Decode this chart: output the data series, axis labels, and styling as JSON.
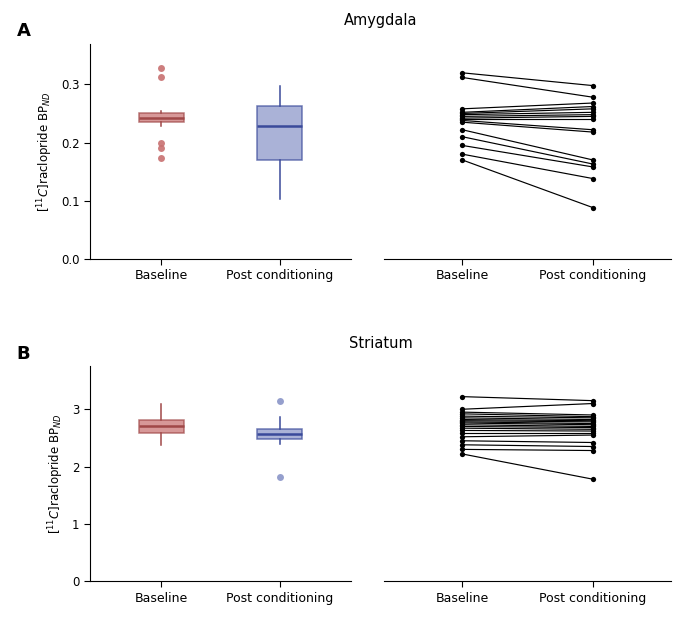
{
  "title_A": "Amygdala",
  "title_B": "Striatum",
  "xlabel": [
    "Baseline",
    "Post conditioning"
  ],
  "panel_A_box": {
    "baseline": {
      "median": 0.243,
      "q1": 0.235,
      "q3": 0.25,
      "whisker_low": 0.228,
      "whisker_high": 0.255,
      "outliers": [
        0.328,
        0.312,
        0.2,
        0.19,
        0.174
      ]
    },
    "post": {
      "median": 0.228,
      "q1": 0.17,
      "q3": 0.263,
      "whisker_low": 0.102,
      "whisker_high": 0.298,
      "outliers": []
    }
  },
  "panel_A_lines": {
    "baseline": [
      0.32,
      0.312,
      0.258,
      0.252,
      0.25,
      0.248,
      0.245,
      0.242,
      0.24,
      0.238,
      0.235,
      0.222,
      0.21,
      0.195,
      0.18,
      0.17
    ],
    "post": [
      0.298,
      0.278,
      0.268,
      0.262,
      0.258,
      0.252,
      0.248,
      0.245,
      0.24,
      0.222,
      0.218,
      0.17,
      0.163,
      0.158,
      0.138,
      0.088
    ]
  },
  "panel_B_box": {
    "baseline": {
      "median": 2.7,
      "q1": 2.58,
      "q3": 2.82,
      "whisker_low": 2.38,
      "whisker_high": 3.1,
      "outliers": []
    },
    "post": {
      "median": 2.57,
      "q1": 2.48,
      "q3": 2.65,
      "whisker_low": 2.4,
      "whisker_high": 2.87,
      "outliers": [
        3.15,
        1.82
      ]
    }
  },
  "panel_B_lines": {
    "baseline": [
      3.22,
      3.0,
      2.95,
      2.92,
      2.88,
      2.85,
      2.82,
      2.8,
      2.78,
      2.76,
      2.73,
      2.7,
      2.67,
      2.63,
      2.58,
      2.52,
      2.45,
      2.38,
      2.3,
      2.22
    ],
    "post": [
      3.15,
      3.1,
      2.9,
      2.87,
      2.85,
      2.82,
      2.8,
      2.78,
      2.75,
      2.73,
      2.7,
      2.68,
      2.65,
      2.62,
      2.58,
      2.55,
      2.42,
      2.35,
      2.28,
      1.78
    ]
  },
  "color_baseline_face": "#C87070",
  "color_baseline_edge": "#A04848",
  "color_post_face": "#8A95C8",
  "color_post_edge": "#3A4A9A",
  "background": "white"
}
